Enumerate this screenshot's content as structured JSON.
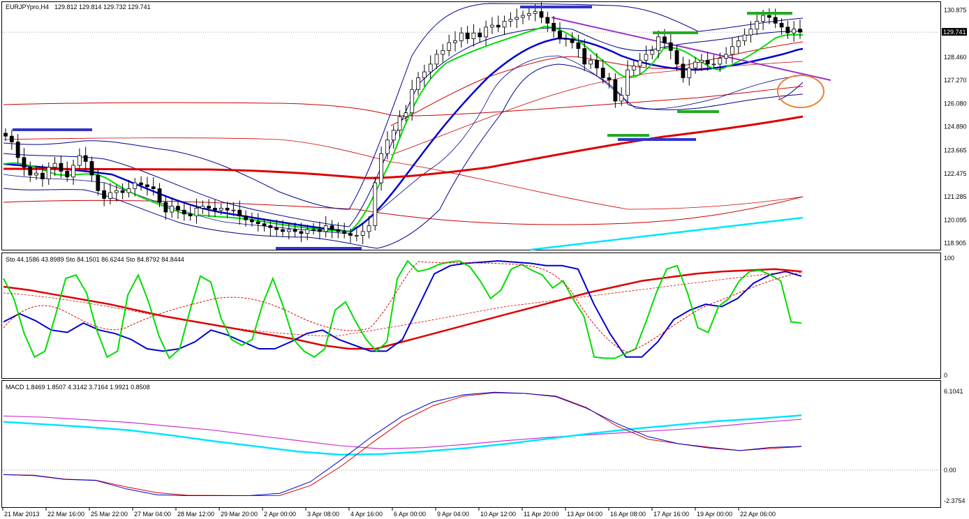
{
  "symbol_header": {
    "symbol": "EURJPYpro,H4",
    "ohlc": "129.812 129.814 129.732 129.741"
  },
  "colors": {
    "background": "#ffffff",
    "frame": "#000000",
    "candle_up": "#ffffff",
    "candle_down": "#000000",
    "bb_outer": "#00008b",
    "ma_fast": "#00dd00",
    "ma_mid": "#0000cc",
    "ma_slow": "#cc0000",
    "env_red": "#cc0000",
    "cyan_line": "#00e5ff",
    "trendline": "#9932cc",
    "annot_blue": "#3333cc",
    "annot_green": "#22aa22",
    "circle": "#f08030"
  },
  "chart_data": [
    {
      "type": "candlestick",
      "panel": "price",
      "ylim": [
        118.6,
        131.25
      ],
      "y_ticks": [
        "130.875",
        "129.741",
        "128.460",
        "127.270",
        "126.080",
        "124.890",
        "123.665",
        "122.475",
        "121.285",
        "120.095",
        "118.905"
      ],
      "y_tick_values": [
        130.875,
        129.741,
        128.46,
        127.27,
        126.08,
        124.89,
        123.665,
        122.475,
        121.285,
        120.095,
        118.905
      ],
      "current_price_label": "129.741",
      "current_price": 129.741,
      "x_labels": [
        "21 Mar 2013",
        "22 Mar 16:00",
        "25 Mar 22:00",
        "27 Mar 04:00",
        "28 Mar 12:00",
        "29 Mar 20:00",
        "2 Apr 00:00",
        "3 Apr 08:00",
        "4 Apr 16:00",
        "6 Apr 00:00",
        "9 Apr 04:00",
        "10 Apr 12:00",
        "11 Apr 20:00",
        "13 Apr 04:00",
        "16 Apr 08:00",
        "17 Apr 16:00",
        "19 Apr 00:00",
        "22 Apr 06:00"
      ],
      "series": [
        {
          "id": "close",
          "values": [
            124.4,
            124.1,
            123.3,
            122.8,
            122.4,
            122.5,
            122.2,
            122.8,
            123.0,
            122.6,
            122.3,
            122.9,
            123.4,
            123.1,
            122.4,
            121.6,
            121.2,
            121.5,
            121.6,
            121.5,
            121.7,
            122.0,
            121.9,
            121.8,
            121.7,
            121.0,
            120.5,
            120.8,
            120.6,
            120.4,
            120.3,
            120.7,
            120.8,
            120.7,
            120.6,
            120.7,
            120.6,
            120.6,
            120.3,
            120.1,
            120.0,
            119.9,
            119.8,
            119.7,
            119.6,
            119.5,
            119.6,
            119.5,
            119.4,
            119.6,
            119.6,
            119.5,
            119.8,
            119.6,
            119.5,
            119.4,
            119.3,
            119.3,
            119.5,
            119.8,
            122.0,
            123.5,
            124.2,
            124.7,
            125.4,
            125.6,
            126.8,
            127.4,
            127.7,
            128.1,
            128.6,
            128.8,
            129.2,
            129.3,
            129.7,
            129.4,
            129.7,
            129.5,
            130.0,
            130.1,
            130.0,
            130.3,
            130.4,
            130.5,
            130.6,
            130.7,
            130.8,
            130.5,
            130.2,
            129.8,
            129.4,
            129.4,
            129.2,
            128.9,
            128.1,
            128.3,
            127.9,
            127.4,
            127.3,
            126.2,
            126.5,
            127.8,
            128.0,
            128.3,
            128.6,
            128.8,
            129.5,
            129.2,
            128.8,
            128.1,
            127.4,
            127.9,
            128.2,
            128.3,
            128.1,
            128.1,
            128.4,
            128.6,
            129.0,
            129.3,
            129.6,
            129.9,
            130.3,
            130.6,
            130.5,
            130.2,
            130.0,
            129.7,
            129.9,
            129.74
          ]
        },
        {
          "id": "ma_slow",
          "values": [
            123.0,
            123.0,
            123.0,
            122.95,
            122.9,
            122.85,
            122.8,
            122.7,
            122.6,
            122.5,
            122.45,
            122.6,
            123.0,
            123.6,
            124.0,
            124.3,
            124.55,
            124.8,
            125.0,
            125.2,
            125.45,
            125.7,
            125.9
          ]
        },
        {
          "id": "cyan_line",
          "values": [
            118.9,
            119.15,
            119.4,
            119.6,
            119.85,
            120.05,
            120.3,
            120.55
          ]
        },
        {
          "id": "trendline",
          "values": [
            131.0,
            127.7
          ]
        }
      ],
      "annotations": [
        "support/resistance markers",
        "trendline",
        "circle"
      ]
    },
    {
      "type": "line",
      "panel": "stochastic",
      "header": "Sto 44.1586 43.8989  Sto 84.1501 86.6244  Sto 84.8792 84.8444",
      "ylim": [
        0,
        100
      ],
      "y_ticks": [
        "100",
        "0"
      ],
      "series": [
        {
          "id": "sto_fast",
          "values": [
            82,
            65,
            35,
            15,
            20,
            50,
            82,
            85,
            70,
            38,
            15,
            20,
            68,
            85,
            62,
            33,
            14,
            22,
            55,
            84,
            79,
            48,
            30,
            25,
            30,
            60,
            82,
            58,
            30,
            20,
            15,
            22,
            55,
            62,
            45,
            30,
            20,
            28,
            82,
            97,
            88,
            90,
            94,
            96,
            97,
            92,
            80,
            65,
            72,
            90,
            94,
            89,
            85,
            74,
            80,
            64,
            50,
            15,
            14,
            14,
            18,
            22,
            45,
            70,
            90,
            93,
            70,
            40,
            36,
            58,
            65,
            80,
            88,
            89,
            85,
            80,
            45,
            44
          ]
        },
        {
          "id": "sto_slow",
          "values": [
            45,
            52,
            46,
            38,
            36,
            44,
            38,
            35,
            30,
            22,
            20,
            22,
            28,
            38,
            34,
            28,
            22,
            22,
            28,
            35,
            38,
            30,
            25,
            20,
            20,
            30,
            58,
            86,
            93,
            95,
            96,
            97,
            96,
            95,
            93,
            93,
            90,
            60,
            35,
            15,
            15,
            28,
            47,
            55,
            60,
            58,
            65,
            78,
            85,
            88,
            84
          ]
        },
        {
          "id": "sto_ma",
          "values": [
            75,
            72,
            68,
            64,
            60,
            55,
            50,
            46,
            42,
            38,
            34,
            30,
            25,
            22,
            22,
            28,
            34,
            40,
            46,
            52,
            58,
            64,
            70,
            75,
            80,
            83,
            86,
            88,
            89,
            90,
            88
          ]
        }
      ]
    },
    {
      "type": "line",
      "panel": "macd",
      "header": "MACD 1.8469 1.8507 4.3142 3.7164 1.9921 0.8508",
      "ylim": [
        -2.6,
        6.6
      ],
      "y_ticks": [
        "6.1041",
        "0.00",
        "-2.3754"
      ],
      "y_tick_values": [
        6.1041,
        0.0,
        -2.3754
      ],
      "series": [
        {
          "id": "macd_main",
          "values": [
            -0.35,
            -0.42,
            -0.72,
            -0.8,
            -1.45,
            -1.92,
            -1.98,
            -1.98,
            -1.98,
            -1.8,
            -0.9,
            0.8,
            2.6,
            4.2,
            5.3,
            5.85,
            6.05,
            5.95,
            5.7,
            4.8,
            3.6,
            2.6,
            2.05,
            1.72,
            1.52,
            1.76,
            1.85
          ]
        },
        {
          "id": "macd_signal",
          "values": [
            -0.35,
            -0.4,
            -0.7,
            -0.78,
            -1.3,
            -1.75,
            -1.95,
            -1.96,
            -1.98,
            -1.97,
            -1.2,
            0.3,
            2.1,
            3.8,
            5.0,
            5.75,
            6.0,
            5.95,
            5.75,
            4.85,
            3.4,
            2.4,
            2.05,
            1.78,
            1.52,
            1.68,
            1.82
          ]
        },
        {
          "id": "macd_long",
          "values": [
            4.2,
            4.1,
            3.9,
            3.7,
            3.4,
            3.1,
            2.7,
            2.3,
            1.9,
            1.65,
            1.75,
            2.0,
            2.3,
            2.55,
            2.75,
            2.95,
            3.15,
            3.4,
            3.7,
            3.95
          ]
        },
        {
          "id": "macd_cyan",
          "values": [
            3.75,
            3.55,
            3.35,
            3.1,
            2.7,
            2.25,
            1.85,
            1.45,
            1.2,
            1.25,
            1.45,
            1.7,
            2.05,
            2.45,
            2.85,
            3.2,
            3.5,
            3.8,
            4.0,
            4.25
          ]
        }
      ]
    }
  ]
}
